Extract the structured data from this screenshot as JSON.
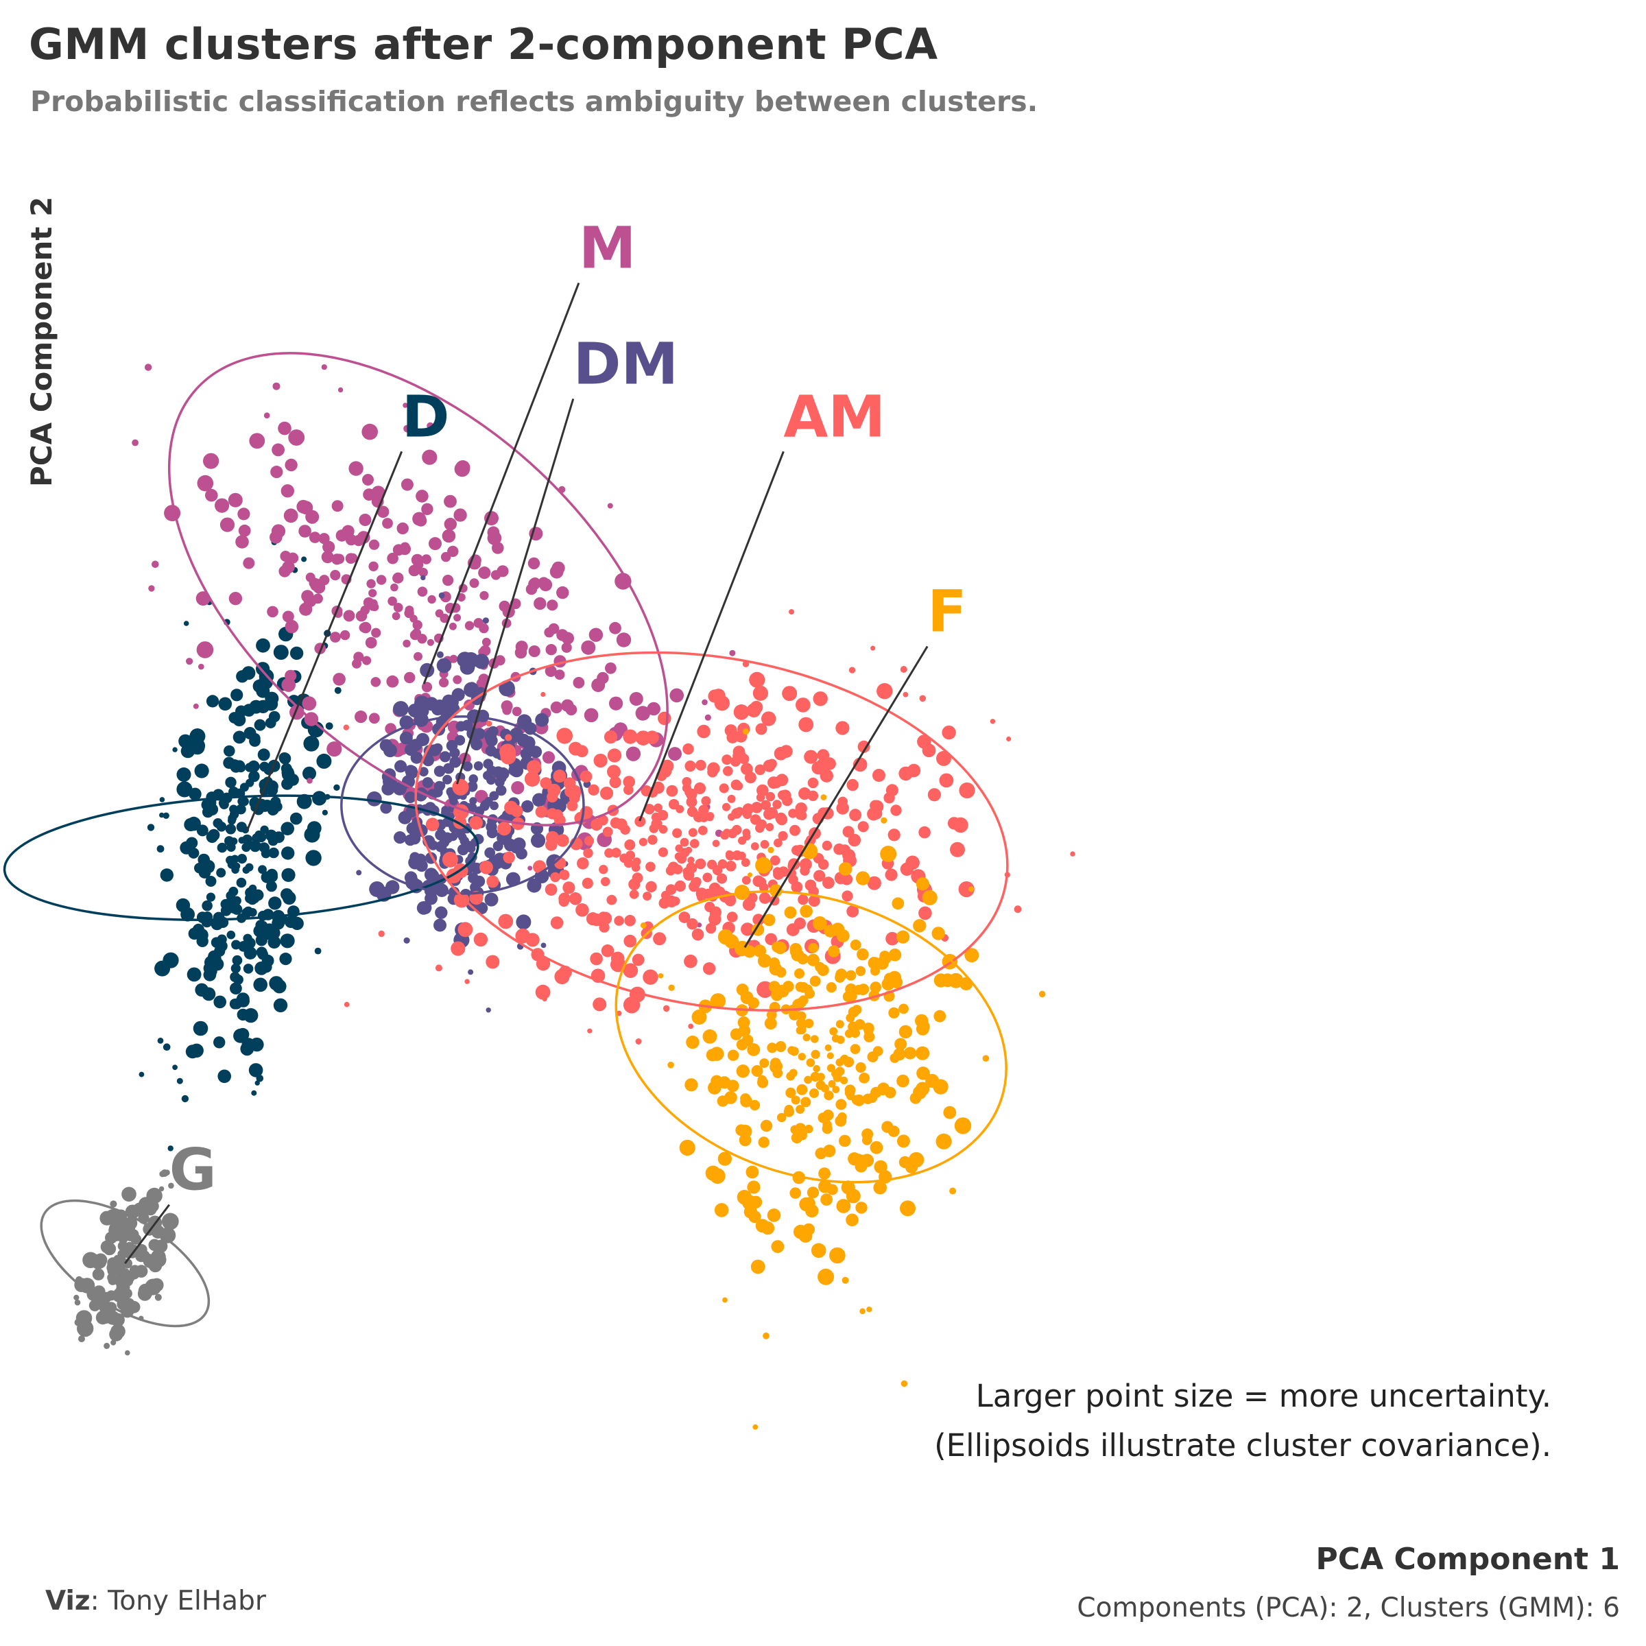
{
  "title": "GMM clusters after 2-component PCA",
  "subtitle": "Probabilistic classification reflects ambiguity between clusters.",
  "note_line1": "Larger point size = more uncertainty.",
  "note_line2": "(Ellipsoids illustrate cluster covariance).",
  "credit_label": "Viz",
  "credit_name": ": Tony ElHabr",
  "caption": "Components (PCA): 2, Clusters (GMM): 6",
  "chart_data": {
    "type": "scatter",
    "xlabel": "PCA Component 1",
    "ylabel": "PCA Component 2",
    "xlim": [
      -4.2,
      9
    ],
    "ylim": [
      -5.5,
      7
    ],
    "grid": false,
    "legend": "direct labels",
    "series": [
      {
        "name": "D",
        "color": "#003f5c",
        "center": [
          -2.95,
          0.55
        ],
        "sd": [
          0.33,
          1.05
        ],
        "rho": 0.3,
        "n": 320,
        "label_at": [
          -1.5,
          4.55
        ],
        "anchor": [
          -2.9,
          0.8
        ],
        "ellipse": {
          "center": [
            -2.95,
            0.55
          ],
          "semi_axes": [
            0.55,
            2.25
          ],
          "angle_deg": 93
        }
      },
      {
        "name": "M",
        "color": "#bc5090",
        "center": [
          -1.25,
          2.7
        ],
        "sd": [
          1.05,
          0.9
        ],
        "rho": -0.45,
        "n": 330,
        "label_at": [
          0.1,
          6.15
        ],
        "anchor": [
          -1.3,
          2.2
        ],
        "ellipse": {
          "center": [
            -1.35,
            3.1
          ],
          "semi_axes": [
            2.7,
            1.6
          ],
          "angle_deg": -42
        }
      },
      {
        "name": "DM",
        "color": "#58508d",
        "center": [
          -0.95,
          1.05
        ],
        "sd": [
          0.42,
          0.62
        ],
        "rho": 0.0,
        "n": 300,
        "label_at": [
          0.05,
          5.05
        ],
        "anchor": [
          -1.0,
          1.25
        ],
        "ellipse": {
          "center": [
            -0.95,
            1.05
          ],
          "semi_axes": [
            0.8,
            1.15
          ],
          "angle_deg": 90
        }
      },
      {
        "name": "AM",
        "color": "#ff6361",
        "center": [
          1.25,
          0.7
        ],
        "sd": [
          1.2,
          0.68
        ],
        "rho": 0.22,
        "n": 460,
        "label_at": [
          1.95,
          4.55
        ],
        "anchor": [
          0.65,
          0.9
        ],
        "ellipse": {
          "center": [
            1.3,
            0.8
          ],
          "semi_axes": [
            2.7,
            1.65
          ],
          "angle_deg": -10
        }
      },
      {
        "name": "F",
        "color": "#ffa600",
        "center": [
          2.35,
          -1.35
        ],
        "sd": [
          0.62,
          0.95
        ],
        "rho": 0.15,
        "n": 330,
        "label_at": [
          3.25,
          2.7
        ],
        "anchor": [
          1.6,
          -0.3
        ],
        "ellipse": {
          "center": [
            2.2,
            -1.15
          ],
          "semi_axes": [
            1.25,
            1.9
          ],
          "angle_deg": 72
        }
      },
      {
        "name": "G",
        "color": "#7f7f7f",
        "center": [
          -4.0,
          -3.3
        ],
        "sd": [
          0.18,
          0.33
        ],
        "rho": 0.5,
        "n": 150,
        "label_at": [
          -3.6,
          -2.6
        ],
        "anchor": [
          -4.0,
          -3.3
        ],
        "ellipse": {
          "center": [
            -4.0,
            -3.3
          ],
          "semi_axes": [
            0.4,
            0.9
          ],
          "angle_deg": 58
        }
      }
    ]
  }
}
